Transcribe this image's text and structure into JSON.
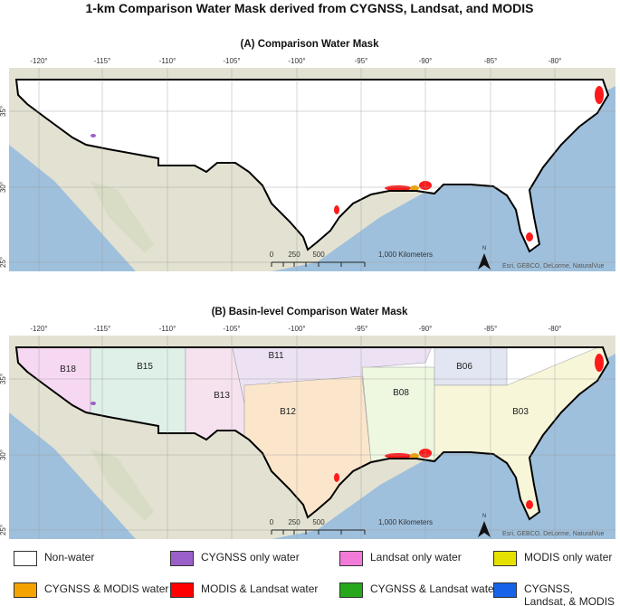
{
  "title": "1-km Comparison Water Mask derived from CYGNSS, Landsat, and MODIS",
  "panels": [
    {
      "title": "(A) Comparison Water Mask",
      "lon_labels": [
        "-120°",
        "-115°",
        "-110°",
        "-105°",
        "-100°",
        "-95°",
        "-90°",
        "-85°",
        "-80°"
      ],
      "lat_labels": [
        "35°",
        "30°",
        "25°"
      ],
      "scale_labels": [
        "0",
        "250",
        "500",
        "1,000 Kilometers"
      ],
      "north": "N",
      "attribution": "Esri, GEBCO, DeLorme, NaturalVue"
    },
    {
      "title": "(B) Basin-level Comparison Water Mask",
      "lon_labels": [
        "-120°",
        "-115°",
        "-110°",
        "-105°",
        "-100°",
        "-95°",
        "-90°",
        "-85°",
        "-80°"
      ],
      "lat_labels": [
        "35°",
        "30°",
        "25°"
      ],
      "scale_labels": [
        "0",
        "250",
        "500",
        "1,000 Kilometers"
      ],
      "north": "N",
      "attribution": "Esri, GEBCO, DeLorme, NaturalVue",
      "basins": [
        "B18",
        "B15",
        "B13",
        "B11",
        "B12",
        "B08",
        "B06",
        "B03"
      ]
    }
  ],
  "legend": [
    {
      "label": "Non-water",
      "color": "#ffffff"
    },
    {
      "label": "CYGNSS only water",
      "color": "#9b5fc9"
    },
    {
      "label": "Landsat only water",
      "color": "#f27ad9"
    },
    {
      "label": "MODIS only water",
      "color": "#e6e000"
    },
    {
      "label": "CYGNSS & MODIS water",
      "color": "#f5a300"
    },
    {
      "label": "MODIS & Landsat water",
      "color": "#ff0000"
    },
    {
      "label": "CYGNSS & Landsat water",
      "color": "#27a81a"
    },
    {
      "label": "CYGNSS, Landsat, & MODIS water",
      "color": "#1763e8"
    }
  ]
}
